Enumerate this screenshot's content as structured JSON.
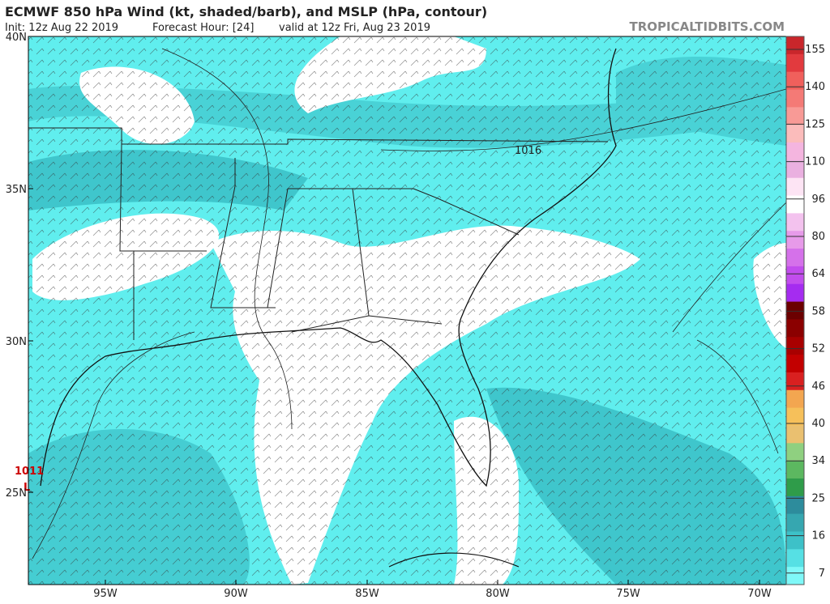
{
  "header": {
    "title": "ECMWF 850 hPa Wind (kt, shaded/barb), and MSLP (hPa, contour)",
    "init": "Init: 12z Aug 22 2019",
    "forecast": "Forecast Hour: [24]",
    "valid": "valid at 12z Fri, Aug 23 2019",
    "brand": "TROPICALTIDBITS.COM"
  },
  "map": {
    "lat_labels": [
      "40N",
      "35N",
      "30N",
      "25N"
    ],
    "lon_labels": [
      "95W",
      "90W",
      "85W",
      "80W",
      "75W",
      "70W"
    ],
    "contour_labels": [
      "1016",
      "1011"
    ],
    "low_marker": "L"
  },
  "colorbar": {
    "labels": [
      155,
      140,
      125,
      110,
      96,
      80,
      64,
      58,
      52,
      46,
      40,
      34,
      25,
      16,
      7
    ]
  }
}
